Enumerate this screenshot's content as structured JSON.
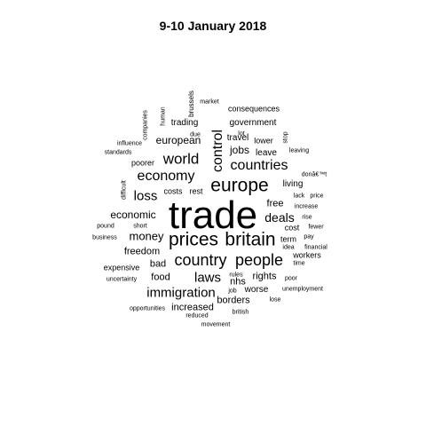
{
  "title": "9-10 January 2018",
  "words": [
    {
      "text": "trade",
      "rot": false
    },
    {
      "text": "prices",
      "rot": false
    },
    {
      "text": "britain",
      "rot": false
    },
    {
      "text": "europe",
      "rot": false
    },
    {
      "text": "country",
      "rot": false
    },
    {
      "text": "people",
      "rot": false
    },
    {
      "text": "immigration",
      "rot": false
    },
    {
      "text": "economy",
      "rot": false
    },
    {
      "text": "world",
      "rot": false
    },
    {
      "text": "countries",
      "rot": false
    },
    {
      "text": "control",
      "rot": true
    },
    {
      "text": "loss",
      "rot": false
    },
    {
      "text": "laws",
      "rot": false
    },
    {
      "text": "deals",
      "rot": false
    },
    {
      "text": "money",
      "rot": false
    },
    {
      "text": "economic",
      "rot": false
    },
    {
      "text": "jobs",
      "rot": false
    },
    {
      "text": "european",
      "rot": false
    },
    {
      "text": "free",
      "rot": false
    },
    {
      "text": "freedom",
      "rot": false
    },
    {
      "text": "food",
      "rot": false
    },
    {
      "text": "bad",
      "rot": false
    },
    {
      "text": "rights",
      "rot": false
    },
    {
      "text": "nhs",
      "rot": false
    },
    {
      "text": "borders",
      "rot": false
    },
    {
      "text": "increased",
      "rot": false
    },
    {
      "text": "workers",
      "rot": false
    },
    {
      "text": "expensive",
      "rot": false
    },
    {
      "text": "trading",
      "rot": false
    },
    {
      "text": "travel",
      "rot": false
    },
    {
      "text": "government",
      "rot": false
    },
    {
      "text": "living",
      "rot": false
    },
    {
      "text": "leave",
      "rot": false
    },
    {
      "text": "worse",
      "rot": false
    },
    {
      "text": "term",
      "rot": false
    },
    {
      "text": "cost",
      "rot": false
    },
    {
      "text": "poorer",
      "rot": false
    },
    {
      "text": "costs",
      "rot": false
    },
    {
      "text": "rest",
      "rot": false
    },
    {
      "text": "lower",
      "rot": false
    },
    {
      "text": "consequences",
      "rot": false
    },
    {
      "text": "market",
      "rot": false
    },
    {
      "text": "brussels",
      "rot": true
    },
    {
      "text": "human",
      "rot": true
    },
    {
      "text": "companies",
      "rot": true
    },
    {
      "text": "due",
      "rot": false
    },
    {
      "text": "lot",
      "rot": false
    },
    {
      "text": "stop",
      "rot": true
    },
    {
      "text": "influence",
      "rot": false
    },
    {
      "text": "standards",
      "rot": false
    },
    {
      "text": "leaving",
      "rot": false
    },
    {
      "text": "donâ€™t",
      "rot": false
    },
    {
      "text": "difficult",
      "rot": true
    },
    {
      "text": "lack",
      "rot": false
    },
    {
      "text": "price",
      "rot": false
    },
    {
      "text": "increase",
      "rot": false
    },
    {
      "text": "rise",
      "rot": false
    },
    {
      "text": "pound",
      "rot": false
    },
    {
      "text": "short",
      "rot": false
    },
    {
      "text": "business",
      "rot": false
    },
    {
      "text": "fewer",
      "rot": false
    },
    {
      "text": "pay",
      "rot": false
    },
    {
      "text": "idea",
      "rot": false
    },
    {
      "text": "financial",
      "rot": false
    },
    {
      "text": "time",
      "rot": false
    },
    {
      "text": "rules",
      "rot": false
    },
    {
      "text": "poor",
      "rot": false
    },
    {
      "text": "uncertainty",
      "rot": false
    },
    {
      "text": "job",
      "rot": false
    },
    {
      "text": "unemployment",
      "rot": false
    },
    {
      "text": "lose",
      "rot": false
    },
    {
      "text": "opportunities",
      "rot": false
    },
    {
      "text": "british",
      "rot": false
    },
    {
      "text": "reduced",
      "rot": false
    },
    {
      "text": "movement",
      "rot": false
    }
  ]
}
